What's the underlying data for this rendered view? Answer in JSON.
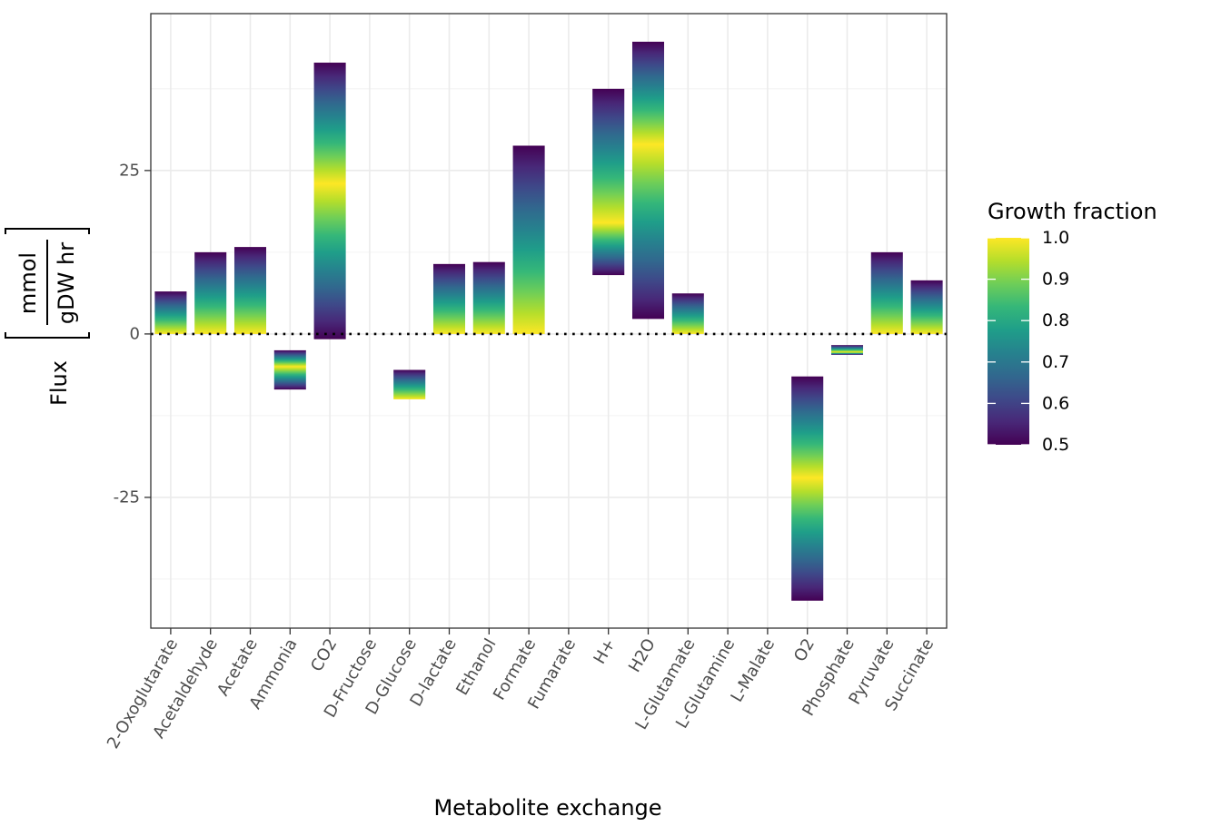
{
  "chart_data": {
    "type": "bar",
    "xlabel": "Metabolite exchange",
    "ylabel": {
      "prefix": "Flux",
      "numerator": "mmol",
      "denominator": "gDW hr"
    },
    "ylim": [
      -45,
      49
    ],
    "yticks": [
      -25,
      0,
      25
    ],
    "ytick_labels": [
      "-25",
      "0",
      "25"
    ],
    "grid": true,
    "zero_line": "dotted",
    "categories": [
      "2-Oxoglutarate",
      "Acetaldehyde",
      "Acetate",
      "Ammonia",
      "CO2",
      "D-Fructose",
      "D-Glucose",
      "D-lactate",
      "Ethanol",
      "Formate",
      "Fumarate",
      "H+",
      "H2O",
      "L-Glutamate",
      "L-Glutamine",
      "L-Malate",
      "O2",
      "Phosphate",
      "Pyruvate",
      "Succinate"
    ],
    "ranges": [
      {
        "min": 0.0,
        "max": 6.5,
        "high_end": "min"
      },
      {
        "min": 0.0,
        "max": 12.5,
        "high_end": "min"
      },
      {
        "min": 0.0,
        "max": 13.3,
        "high_end": "min"
      },
      {
        "min": -8.5,
        "max": -2.5,
        "high_end": "mid",
        "high_at": -5.0
      },
      {
        "min": -0.8,
        "max": 41.5,
        "high_end": "mid",
        "high_at": 23.0
      },
      null,
      {
        "min": -10.0,
        "max": -5.5,
        "high_end": "min"
      },
      {
        "min": 0.0,
        "max": 10.7,
        "high_end": "min"
      },
      {
        "min": 0.0,
        "max": 11.0,
        "high_end": "min"
      },
      {
        "min": 0.0,
        "max": 28.8,
        "high_end": "min"
      },
      null,
      {
        "min": 9.0,
        "max": 37.5,
        "high_end": "mid",
        "high_at": 17.0
      },
      {
        "min": 2.3,
        "max": 44.7,
        "high_end": "mid",
        "high_at": 29.0
      },
      {
        "min": 0.0,
        "max": 6.2,
        "high_end": "min"
      },
      null,
      null,
      {
        "min": -40.8,
        "max": -6.5,
        "high_end": "mid",
        "high_at": -22.0
      },
      {
        "min": -3.2,
        "max": -1.7,
        "high_end": "mid",
        "high_at": -2.8
      },
      {
        "min": 0.0,
        "max": 12.5,
        "high_end": "min"
      },
      {
        "min": 0.0,
        "max": 8.2,
        "high_end": "min"
      }
    ],
    "legend": {
      "title": "Growth fraction",
      "position": "right",
      "range": [
        0.5,
        1.0
      ],
      "ticks": [
        1.0,
        0.9,
        0.8,
        0.7,
        0.6,
        0.5
      ],
      "tick_labels": [
        "1.0",
        "0.9",
        "0.8",
        "0.7",
        "0.6",
        "0.5"
      ]
    },
    "colormap": "viridis",
    "colors": {
      "panel_border": "#333333",
      "grid_major": "#ebebeb",
      "grid_minor": "#f4f4f4",
      "viridis": [
        "#440154",
        "#482878",
        "#3e4989",
        "#31688e",
        "#26828e",
        "#1f9e89",
        "#35b779",
        "#6ece58",
        "#b5de2b",
        "#fde725"
      ]
    }
  }
}
